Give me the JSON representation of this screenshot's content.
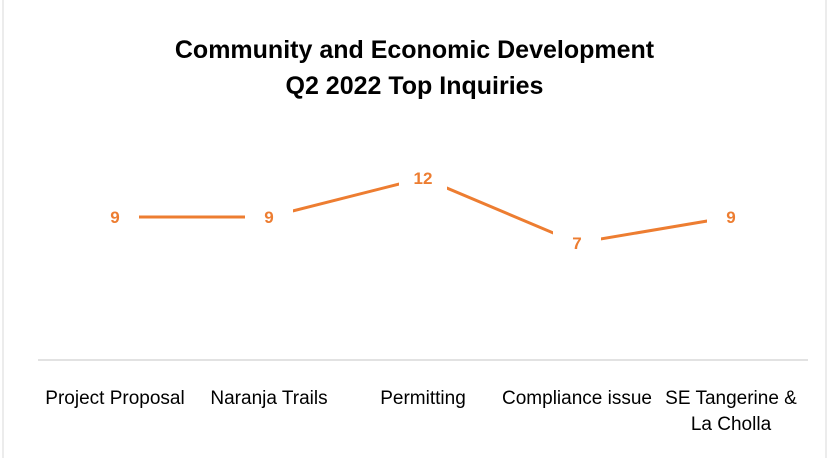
{
  "chart_data": {
    "type": "line",
    "title": "Community and Economic Development\nQ2 2022 Top Inquiries",
    "categories": [
      "Project Proposal",
      "Naranja Trails",
      "Permitting",
      "Compliance issue",
      "SE Tangerine & La Cholla"
    ],
    "series": [
      {
        "name": null,
        "color": "#ed7d31",
        "values": [
          9,
          9,
          12,
          7,
          9
        ]
      }
    ],
    "ylim": [
      0,
      14
    ]
  }
}
